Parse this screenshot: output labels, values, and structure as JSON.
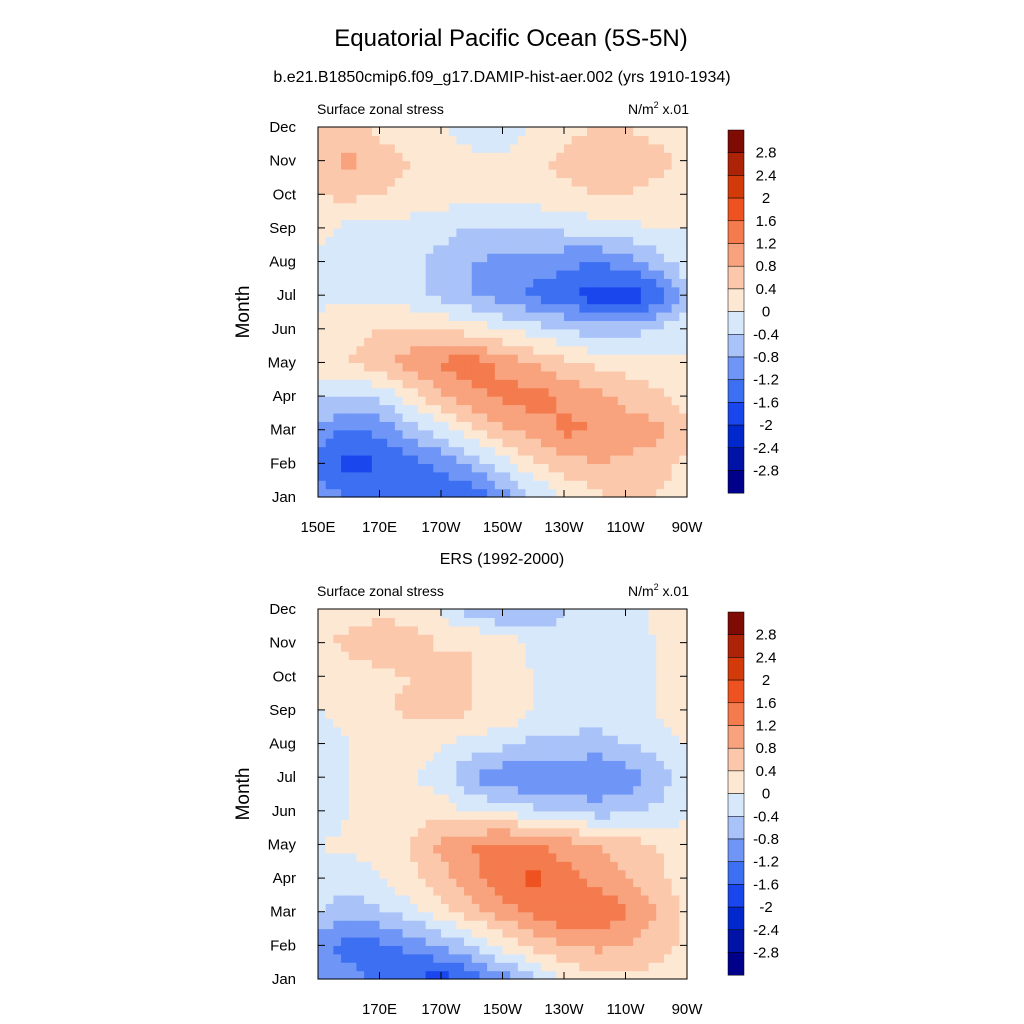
{
  "figure": {
    "title": "Equatorial Pacific Ocean (5S-5N)"
  },
  "chart_data": [
    {
      "type": "heatmap",
      "title": "b.e21.B1850cmip6.f09_g17.DAMIP-hist-aer.002 (yrs 1910-1934)",
      "left_label": "Surface zonal stress",
      "units_label": "N/m",
      "units_sup": "2",
      "units_suffix": " x.01",
      "ylabel": "Month",
      "xlabel": "",
      "x_ticks": [
        "150E",
        "170E",
        "170W",
        "150W",
        "130W",
        "110W",
        "90W"
      ],
      "y_ticks": [
        "Jan",
        "Feb",
        "Mar",
        "Apr",
        "May",
        "Jun",
        "Jul",
        "Aug",
        "Sep",
        "Oct",
        "Nov",
        "Dec"
      ],
      "xlim_degE": [
        150,
        270
      ],
      "x_values_degE": [
        150,
        160,
        170,
        180,
        190,
        200,
        210,
        220,
        230,
        240,
        250,
        260,
        270
      ],
      "values": [
        [
          -1.0,
          -1.2,
          -1.3,
          -1.5,
          -1.6,
          -1.5,
          -1.0,
          -0.4,
          0.0,
          0.3,
          0.5,
          0.4,
          0.2
        ],
        [
          -1.4,
          -1.8,
          -1.6,
          -1.4,
          -1.1,
          -0.7,
          -0.2,
          0.3,
          0.6,
          0.8,
          0.7,
          0.6,
          0.3
        ],
        [
          -0.9,
          -1.3,
          -1.1,
          -0.6,
          -0.2,
          0.3,
          0.7,
          1.0,
          1.3,
          1.2,
          1.0,
          0.9,
          0.5
        ],
        [
          -0.3,
          -0.5,
          -0.3,
          0.2,
          0.7,
          1.1,
          1.3,
          1.4,
          1.1,
          0.9,
          0.7,
          0.5,
          0.2
        ],
        [
          0.2,
          0.4,
          0.6,
          1.0,
          1.3,
          1.4,
          1.1,
          0.8,
          0.5,
          0.3,
          0.2,
          0.1,
          0.0
        ],
        [
          0.1,
          0.3,
          0.4,
          0.5,
          0.4,
          0.2,
          0.0,
          -0.2,
          -0.4,
          -0.6,
          -0.6,
          -0.4,
          0.0
        ],
        [
          -0.1,
          -0.1,
          -0.2,
          -0.3,
          -0.5,
          -0.8,
          -1.0,
          -1.3,
          -1.5,
          -1.8,
          -1.9,
          -1.6,
          -0.5
        ],
        [
          -0.1,
          -0.2,
          -0.2,
          -0.3,
          -0.5,
          -0.8,
          -0.9,
          -1.0,
          -1.1,
          -1.2,
          -1.0,
          -0.6,
          -0.2
        ],
        [
          0.1,
          -0.1,
          -0.1,
          -0.2,
          -0.3,
          -0.4,
          -0.4,
          -0.4,
          -0.3,
          -0.2,
          -0.1,
          0.0,
          0.0
        ],
        [
          0.4,
          0.5,
          0.4,
          0.3,
          0.2,
          0.1,
          0.1,
          0.2,
          0.3,
          0.4,
          0.4,
          0.3,
          0.2
        ],
        [
          0.6,
          0.9,
          0.6,
          0.4,
          0.3,
          0.1,
          0.1,
          0.3,
          0.5,
          0.6,
          0.6,
          0.5,
          0.3
        ],
        [
          0.4,
          0.5,
          0.3,
          0.2,
          0.0,
          -0.2,
          -0.3,
          0.0,
          0.3,
          0.4,
          0.4,
          0.3,
          0.2
        ]
      ],
      "colorbar_labels": [
        "2.8",
        "2.4",
        "2",
        "1.6",
        "1.2",
        "0.8",
        "0.4",
        "0",
        "-0.4",
        "-0.8",
        "-1.2",
        "-1.6",
        "-2",
        "-2.4",
        "-2.8"
      ]
    },
    {
      "type": "heatmap",
      "title": "ERS (1992-2000)",
      "left_label": "Surface zonal stress",
      "units_label": "N/m",
      "units_sup": "2",
      "units_suffix": " x.01",
      "ylabel": "Month",
      "xlabel": "",
      "x_ticks": [
        "170E",
        "170W",
        "150W",
        "130W",
        "110W",
        "90W"
      ],
      "y_ticks": [
        "Jan",
        "Feb",
        "Mar",
        "Apr",
        "May",
        "Jun",
        "Jul",
        "Aug",
        "Sep",
        "Oct",
        "Nov",
        "Dec"
      ],
      "xlim_degE": [
        150,
        270
      ],
      "x_values_degE": [
        150,
        160,
        170,
        180,
        190,
        200,
        210,
        220,
        230,
        240,
        250,
        260,
        270
      ],
      "values": [
        [
          -0.9,
          -1.0,
          -1.3,
          -1.6,
          -1.8,
          -1.5,
          -1.0,
          -0.5,
          0.0,
          0.2,
          0.3,
          0.2,
          0.1
        ],
        [
          -1.1,
          -1.4,
          -1.3,
          -1.1,
          -0.8,
          -0.4,
          0.1,
          0.5,
          0.8,
          0.9,
          0.8,
          0.6,
          0.3
        ],
        [
          -0.4,
          -0.6,
          -0.5,
          -0.2,
          0.2,
          0.6,
          1.0,
          1.3,
          1.6,
          1.6,
          1.3,
          0.8,
          0.3
        ],
        [
          -0.2,
          -0.3,
          0.0,
          0.3,
          0.6,
          1.1,
          1.5,
          1.7,
          1.4,
          1.1,
          0.8,
          0.5,
          0.2
        ],
        [
          0.0,
          0.1,
          0.2,
          0.4,
          0.9,
          1.2,
          1.4,
          1.3,
          1.0,
          0.8,
          0.6,
          0.4,
          0.2
        ],
        [
          -0.3,
          0.0,
          0.2,
          0.3,
          0.2,
          0.0,
          -0.1,
          -0.3,
          -0.4,
          -0.6,
          -0.5,
          -0.3,
          -0.1
        ],
        [
          -0.1,
          0.0,
          0.1,
          0.0,
          -0.2,
          -0.8,
          -1.1,
          -1.2,
          -1.1,
          -1.2,
          -1.1,
          -0.7,
          -0.1
        ],
        [
          -0.2,
          0.0,
          0.2,
          0.2,
          0.0,
          -0.2,
          -0.3,
          -0.5,
          -0.5,
          -0.6,
          -0.4,
          -0.2,
          0.0
        ],
        [
          0.0,
          0.1,
          0.3,
          0.5,
          0.6,
          0.4,
          0.4,
          0.0,
          -0.1,
          -0.2,
          -0.1,
          0.0,
          0.2
        ],
        [
          0.1,
          0.2,
          0.3,
          0.4,
          0.6,
          0.4,
          0.2,
          0.0,
          -0.2,
          -0.4,
          -0.3,
          0.0,
          0.3
        ],
        [
          0.3,
          0.5,
          0.6,
          0.7,
          0.3,
          0.4,
          0.3,
          -0.1,
          -0.3,
          -0.4,
          -0.3,
          0.0,
          0.3
        ],
        [
          0.3,
          0.2,
          0.3,
          0.2,
          0.0,
          -0.6,
          -0.9,
          -0.8,
          -0.4,
          -0.3,
          -0.2,
          0.1,
          0.2
        ]
      ],
      "colorbar_labels": [
        "2.8",
        "2.4",
        "2",
        "1.6",
        "1.2",
        "0.8",
        "0.4",
        "0",
        "-0.4",
        "-0.8",
        "-1.2",
        "-1.6",
        "-2",
        "-2.4",
        "-2.8"
      ]
    }
  ],
  "colors": {
    "levels": [
      "#00008b",
      "#0013a6",
      "#0028cc",
      "#1a46ee",
      "#3d6ff2",
      "#6f96f6",
      "#a9c3f9",
      "#d8e8fb",
      "#fde8d4",
      "#fbc8ab",
      "#f8a37d",
      "#f47b4e",
      "#ee5220",
      "#d33a0a",
      "#ad2307",
      "#7e0b04"
    ]
  }
}
